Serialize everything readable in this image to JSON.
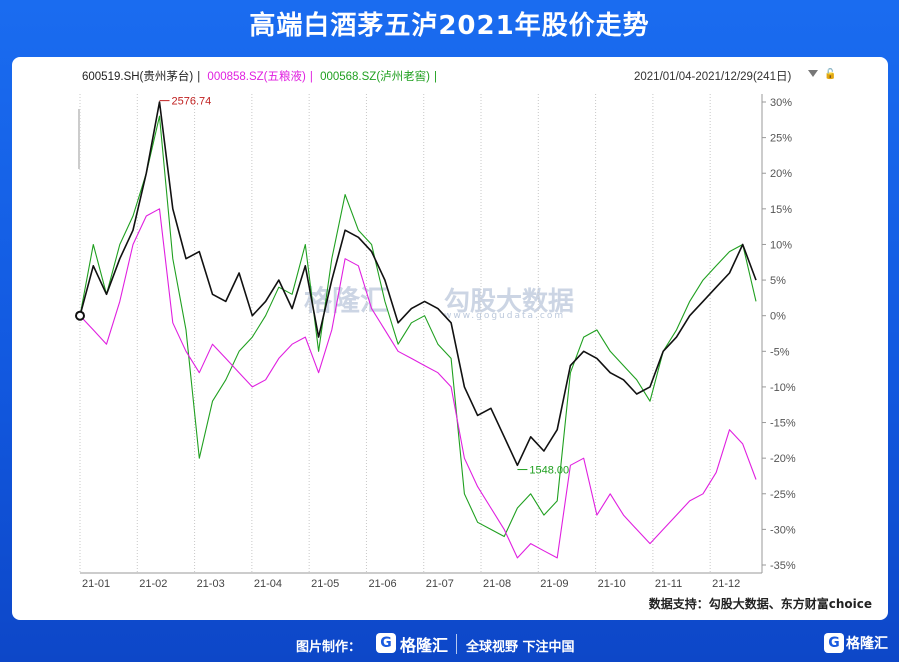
{
  "title": "高端白酒茅五泸2021年股价走势",
  "legend": {
    "items": [
      {
        "label": "600519.SH(贵州茅台)",
        "color": "#222222"
      },
      {
        "label": "000858.SZ(五粮液)",
        "color": "#e020e0"
      },
      {
        "label": "000568.SZ(泸州老窖)",
        "color": "#20a020"
      }
    ],
    "separator": "|",
    "date_range": "2021/01/04-2021/12/29(241日)"
  },
  "watermark": {
    "brand": "格隆汇",
    "text": "勾股大数据",
    "url": "www.gogudata.com"
  },
  "source": "数据支持：勾股大数据、东方财富choice",
  "footer": {
    "made_by": "图片制作：",
    "brand": "格隆汇",
    "slogan": "全球视野 下注中国",
    "brand_right": "格隆汇"
  },
  "chart_data": {
    "type": "line",
    "ylim": [
      -35,
      30
    ],
    "yticks": [
      "30%",
      "25%",
      "20%",
      "15%",
      "10%",
      "5%",
      "0%",
      "-5%",
      "-10%",
      "-15%",
      "-20%",
      "-25%",
      "-30%",
      "-35%"
    ],
    "xticks": [
      "21-01",
      "21-02",
      "21-03",
      "21-04",
      "21-05",
      "21-06",
      "21-07",
      "21-08",
      "21-09",
      "21-10",
      "21-11",
      "21-12"
    ],
    "annotations": [
      {
        "text": "2576.74",
        "series": "600519.SH(贵州茅台)",
        "x": "2021-02-10",
        "y": 30.2,
        "color": "#c02020"
      },
      {
        "text": "1548.00",
        "series": "600519.SH(贵州茅台)",
        "x": "2021-08-20",
        "y": -21.6,
        "color": "#20a020"
      }
    ],
    "x": [
      "01-04",
      "01-11",
      "01-18",
      "01-25",
      "02-01",
      "02-08",
      "02-10",
      "02-18",
      "02-25",
      "03-04",
      "03-11",
      "03-18",
      "03-25",
      "04-01",
      "04-08",
      "04-15",
      "04-22",
      "04-29",
      "05-07",
      "05-14",
      "05-21",
      "05-28",
      "06-04",
      "06-11",
      "06-18",
      "06-25",
      "07-02",
      "07-09",
      "07-16",
      "07-23",
      "07-30",
      "08-06",
      "08-13",
      "08-20",
      "08-27",
      "09-03",
      "09-10",
      "09-17",
      "09-24",
      "10-08",
      "10-15",
      "10-22",
      "10-29",
      "11-05",
      "11-12",
      "11-19",
      "11-26",
      "12-03",
      "12-10",
      "12-17",
      "12-24",
      "12-29"
    ],
    "series": [
      {
        "name": "600519.SH(贵州茅台)",
        "color": "#111111",
        "values": [
          0,
          7,
          3,
          8,
          12,
          20,
          30,
          15,
          8,
          9,
          3,
          2,
          6,
          0,
          2,
          5,
          1,
          7,
          -3,
          5,
          12,
          11,
          9,
          5,
          -1,
          1,
          2,
          1,
          -1,
          -10,
          -14,
          -13,
          -17,
          -21,
          -17,
          -19,
          -16,
          -7,
          -5,
          -6,
          -8,
          -9,
          -11,
          -10,
          -5,
          -3,
          0,
          2,
          4,
          6,
          10,
          5
        ]
      },
      {
        "name": "000858.SZ(五粮液)",
        "color": "#e020e0",
        "values": [
          0,
          -2,
          -4,
          2,
          10,
          14,
          15,
          -1,
          -5,
          -8,
          -4,
          -6,
          -8,
          -10,
          -9,
          -6,
          -4,
          -3,
          -8,
          -2,
          8,
          7,
          1,
          -2,
          -5,
          -6,
          -7,
          -8,
          -10,
          -20,
          -24,
          -27,
          -30,
          -34,
          -32,
          -33,
          -34,
          -21,
          -20,
          -28,
          -25,
          -28,
          -30,
          -32,
          -30,
          -28,
          -26,
          -25,
          -22,
          -16,
          -18,
          -23
        ]
      },
      {
        "name": "000568.SZ(泸州老窖)",
        "color": "#20a020",
        "values": [
          0,
          10,
          3,
          10,
          14,
          20,
          28,
          8,
          -2,
          -20,
          -12,
          -9,
          -5,
          -3,
          0,
          4,
          3,
          10,
          -5,
          8,
          17,
          12,
          10,
          2,
          -4,
          -1,
          0,
          -4,
          -6,
          -25,
          -29,
          -30,
          -31,
          -27,
          -25,
          -28,
          -26,
          -8,
          -3,
          -2,
          -5,
          -7,
          -9,
          -12,
          -5,
          -2,
          2,
          5,
          7,
          9,
          10,
          2
        ]
      }
    ]
  }
}
